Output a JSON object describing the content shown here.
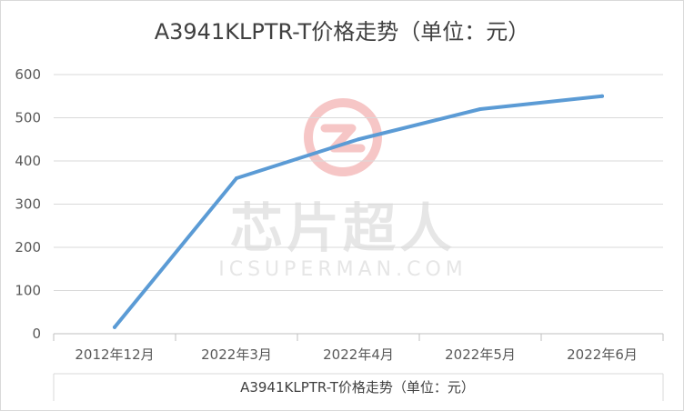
{
  "chart_data": {
    "type": "line",
    "title": "A3941KLPTR-T价格走势（单位：元）",
    "xlabel": "A3941KLPTR-T价格走势（单位：元）",
    "ylabel": "",
    "categories": [
      "2012年12月",
      "2022年3月",
      "2022年4月",
      "2022年5月",
      "2022年6月"
    ],
    "series": [
      {
        "values": [
          15,
          360,
          450,
          520,
          550
        ]
      }
    ],
    "ylim": [
      0,
      600
    ],
    "yticks": [
      0,
      100,
      200,
      300,
      400,
      500,
      600
    ],
    "grid": true,
    "legend": "none",
    "colors": {
      "line": "#5b9bd5",
      "grid": "#d9d9d9",
      "axis": "#bfbfbf",
      "watermark": "#f4b8b8"
    }
  },
  "watermark": {
    "text": "芯片超人",
    "subtext": "ICSUPERMAN.COM"
  }
}
